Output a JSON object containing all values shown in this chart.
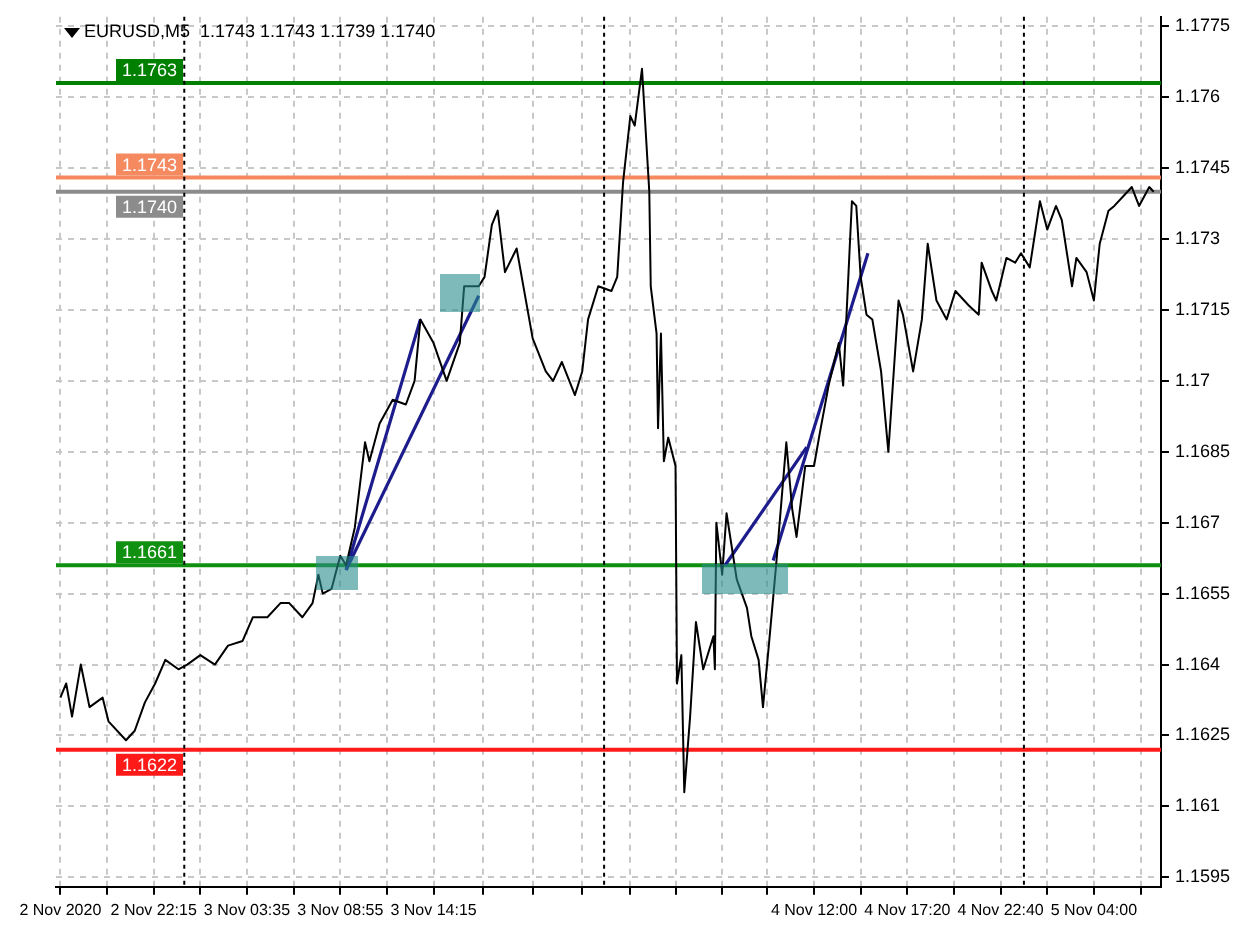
{
  "chart_data": {
    "type": "line",
    "title": "EURUSD,M5  1.1743 1.1743 1.1739 1.1740",
    "xlim": [
      "2020-11-02T16:40",
      "2020-11-05T07:50"
    ],
    "ylim": [
      1.1593,
      1.1777
    ],
    "xticks": [
      {
        "value": "2020-11-02T16:55",
        "label": "2 Nov 2020"
      },
      {
        "value": "2020-11-02T19:35",
        "label": null
      },
      {
        "value": "2020-11-02T22:15",
        "label": "2 Nov 22:15"
      },
      {
        "value": "2020-11-03T00:55",
        "label": null
      },
      {
        "value": "2020-11-03T03:35",
        "label": "3 Nov 03:35"
      },
      {
        "value": "2020-11-03T06:15",
        "label": null
      },
      {
        "value": "2020-11-03T08:55",
        "label": "3 Nov 08:55"
      },
      {
        "value": "2020-11-03T11:35",
        "label": null
      },
      {
        "value": "2020-11-03T14:15",
        "label": "3 Nov 14:15"
      },
      {
        "value": "2020-11-03T17:05",
        "label": null
      },
      {
        "value": "2020-11-03T19:55",
        "label": null
      },
      {
        "value": "2020-11-03T22:45",
        "label": null
      },
      {
        "value": "2020-11-04T01:30",
        "label": null
      },
      {
        "value": "2020-11-04T04:05",
        "label": null
      },
      {
        "value": "2020-11-04T06:45",
        "label": null
      },
      {
        "value": "2020-11-04T09:20",
        "label": null
      },
      {
        "value": "2020-11-04T12:00",
        "label": "4 Nov 12:00"
      },
      {
        "value": "2020-11-04T14:40",
        "label": null
      },
      {
        "value": "2020-11-04T17:20",
        "label": "4 Nov 17:20"
      },
      {
        "value": "2020-11-04T20:00",
        "label": null
      },
      {
        "value": "2020-11-04T22:40",
        "label": "4 Nov 22:40"
      },
      {
        "value": "2020-11-05T01:20",
        "label": null
      },
      {
        "value": "2020-11-05T04:00",
        "label": "5 Nov 04:00"
      },
      {
        "value": "2020-11-05T06:40",
        "label": null
      }
    ],
    "yticks": [
      1.1595,
      1.161,
      1.1625,
      1.164,
      1.1655,
      1.167,
      1.1685,
      1.17,
      1.1715,
      1.173,
      1.1745,
      1.176,
      1.1775
    ],
    "grid": true,
    "legend": false,
    "marker": "none",
    "line_style": "solid",
    "series": [
      {
        "type": "line",
        "color": "#000000",
        "x": [
          "2020-11-02T16:55",
          "2020-11-02T17:15",
          "2020-11-02T17:35",
          "2020-11-02T18:05",
          "2020-11-02T18:35",
          "2020-11-02T19:20",
          "2020-11-02T19:40",
          "2020-11-02T20:40",
          "2020-11-02T21:10",
          "2020-11-02T21:45",
          "2020-11-02T22:20",
          "2020-11-02T22:55",
          "2020-11-02T23:40",
          "2020-11-03T00:10",
          "2020-11-03T00:55",
          "2020-11-03T01:45",
          "2020-11-03T02:30",
          "2020-11-03T03:20",
          "2020-11-03T03:55",
          "2020-11-03T04:45",
          "2020-11-03T05:30",
          "2020-11-03T06:00",
          "2020-11-03T06:45",
          "2020-11-03T07:20",
          "2020-11-03T07:40",
          "2020-11-03T07:55",
          "2020-11-03T08:25",
          "2020-11-03T08:55",
          "2020-11-03T09:15",
          "2020-11-03T09:45",
          "2020-11-03T10:20",
          "2020-11-03T10:35",
          "2020-11-03T11:10",
          "2020-11-03T11:55",
          "2020-11-03T12:40",
          "2020-11-03T13:10",
          "2020-11-03T13:30",
          "2020-11-03T14:15",
          "2020-11-03T15:00",
          "2020-11-03T15:45",
          "2020-11-03T16:00",
          "2020-11-03T16:50",
          "2020-11-03T17:10",
          "2020-11-03T17:35",
          "2020-11-03T17:55",
          "2020-11-03T18:20",
          "2020-11-03T19:00",
          "2020-11-03T19:55",
          "2020-11-03T20:40",
          "2020-11-03T21:05",
          "2020-11-03T21:35",
          "2020-11-03T22:20",
          "2020-11-03T22:45",
          "2020-11-03T23:05",
          "2020-11-03T23:40",
          "2020-11-04T00:25",
          "2020-11-04T00:45",
          "2020-11-04T01:05",
          "2020-11-04T01:30",
          "2020-11-04T01:45",
          "2020-11-04T02:10",
          "2020-11-04T02:35",
          "2020-11-04T02:40",
          "2020-11-04T03:00",
          "2020-11-04T03:05",
          "2020-11-04T03:15",
          "2020-11-04T03:25",
          "2020-11-04T03:40",
          "2020-11-04T04:05",
          "2020-11-04T04:10",
          "2020-11-04T04:25",
          "2020-11-04T04:35",
          "2020-11-04T04:55",
          "2020-11-04T05:15",
          "2020-11-04T05:40",
          "2020-11-04T06:15",
          "2020-11-04T06:20",
          "2020-11-04T06:25",
          "2020-11-04T06:45",
          "2020-11-04T07:00",
          "2020-11-04T07:35",
          "2020-11-04T08:10",
          "2020-11-04T08:25",
          "2020-11-04T08:50",
          "2020-11-04T09:05",
          "2020-11-04T09:25",
          "2020-11-04T09:50",
          "2020-11-04T10:25",
          "2020-11-04T10:45",
          "2020-11-04T11:00",
          "2020-11-04T11:30",
          "2020-11-04T12:00",
          "2020-11-04T12:20",
          "2020-11-04T12:50",
          "2020-11-04T13:25",
          "2020-11-04T13:40",
          "2020-11-04T14:10",
          "2020-11-04T14:25",
          "2020-11-04T14:40",
          "2020-11-04T15:00",
          "2020-11-04T15:20",
          "2020-11-04T15:50",
          "2020-11-04T16:15",
          "2020-11-04T16:50",
          "2020-11-04T17:05",
          "2020-11-04T17:40",
          "2020-11-04T18:10",
          "2020-11-04T18:30",
          "2020-11-04T19:00",
          "2020-11-04T19:35",
          "2020-11-04T20:05",
          "2020-11-04T20:50",
          "2020-11-04T21:25",
          "2020-11-04T21:35",
          "2020-11-04T22:10",
          "2020-11-04T22:25",
          "2020-11-04T23:00",
          "2020-11-04T23:30",
          "2020-11-04T23:50",
          "2020-11-05T00:20",
          "2020-11-05T00:55",
          "2020-11-05T01:20",
          "2020-11-05T01:50",
          "2020-11-05T02:10",
          "2020-11-05T02:45",
          "2020-11-05T03:00",
          "2020-11-05T03:35",
          "2020-11-05T04:00",
          "2020-11-05T04:20",
          "2020-11-05T04:50",
          "2020-11-05T05:10",
          "2020-11-05T05:40",
          "2020-11-05T06:10",
          "2020-11-05T06:35",
          "2020-11-05T07:10",
          "2020-11-05T07:25"
        ],
        "values": [
          1.1633,
          1.1636,
          1.1629,
          1.164,
          1.1631,
          1.1633,
          1.1628,
          1.1624,
          1.1626,
          1.1632,
          1.1636,
          1.1641,
          1.1639,
          1.164,
          1.1642,
          1.164,
          1.1644,
          1.1645,
          1.165,
          1.165,
          1.1653,
          1.1653,
          1.165,
          1.1653,
          1.1659,
          1.1655,
          1.1656,
          1.1663,
          1.1661,
          1.1669,
          1.1687,
          1.1683,
          1.1691,
          1.1696,
          1.1695,
          1.17,
          1.1713,
          1.1708,
          1.17,
          1.1708,
          1.172,
          1.172,
          1.1722,
          1.1733,
          1.1736,
          1.1723,
          1.1728,
          1.1709,
          1.1702,
          1.17,
          1.1704,
          1.1697,
          1.1702,
          1.1713,
          1.172,
          1.1719,
          1.1722,
          1.1742,
          1.1756,
          1.1754,
          1.1766,
          1.174,
          1.172,
          1.171,
          1.169,
          1.171,
          1.1683,
          1.1688,
          1.1682,
          1.1636,
          1.1642,
          1.1613,
          1.1629,
          1.1649,
          1.1639,
          1.1646,
          1.1639,
          1.167,
          1.1659,
          1.1672,
          1.1658,
          1.1652,
          1.1646,
          1.1641,
          1.1631,
          1.1644,
          1.1661,
          1.1687,
          1.1673,
          1.1667,
          1.1682,
          1.1682,
          1.1689,
          1.1699,
          1.1708,
          1.1699,
          1.1738,
          1.1737,
          1.1722,
          1.1714,
          1.1713,
          1.1702,
          1.1685,
          1.1717,
          1.1714,
          1.1702,
          1.1713,
          1.1729,
          1.1717,
          1.1713,
          1.1719,
          1.1716,
          1.1714,
          1.1725,
          1.1719,
          1.1717,
          1.1726,
          1.1725,
          1.1727,
          1.1724,
          1.1738,
          1.1732,
          1.1737,
          1.1734,
          1.172,
          1.1726,
          1.1723,
          1.1717,
          1.1729,
          1.1736,
          1.1737,
          1.1739,
          1.1741,
          1.1737,
          1.1741,
          1.174
        ]
      },
      {
        "type": "line",
        "color": "#1c1c8c",
        "x": [
          "2020-11-03T09:15",
          "2020-11-03T13:30"
        ],
        "values": [
          1.166,
          1.1713
        ]
      },
      {
        "type": "line",
        "color": "#1c1c8c",
        "x": [
          "2020-11-03T09:15",
          "2020-11-03T16:50"
        ],
        "values": [
          1.166,
          1.1718
        ]
      },
      {
        "type": "line",
        "color": "#1c1c8c",
        "x": [
          "2020-11-04T06:55",
          "2020-11-04T11:35"
        ],
        "values": [
          1.1661,
          1.1686
        ]
      },
      {
        "type": "line",
        "color": "#1c1c8c",
        "x": [
          "2020-11-04T09:40",
          "2020-11-04T15:05"
        ],
        "values": [
          1.1662,
          1.1727
        ]
      }
    ],
    "ref_lines": [
      {
        "axis": "y",
        "value": 1.1763,
        "label": "1.1763",
        "color": "#008000",
        "line_style": "solid"
      },
      {
        "axis": "y",
        "value": 1.1743,
        "label": "1.1743",
        "color": "#f58a60",
        "line_style": "solid"
      },
      {
        "axis": "y",
        "value": 1.174,
        "label": "1.1740",
        "color": "#8c8c8c",
        "line_style": "solid"
      },
      {
        "axis": "y",
        "value": 1.1661,
        "label": "1.1661",
        "color": "#109010",
        "line_style": "solid"
      },
      {
        "axis": "y",
        "value": 1.1622,
        "label": "1.1622",
        "color": "#ff1a1a",
        "line_style": "solid"
      },
      {
        "axis": "x",
        "value": "2020-11-03T00:00",
        "color": "#000000",
        "line_style": "dotted"
      },
      {
        "axis": "x",
        "value": "2020-11-04T00:00",
        "color": "#000000",
        "line_style": "dotted"
      },
      {
        "axis": "x",
        "value": "2020-11-05T00:00",
        "color": "#000000",
        "line_style": "dotted"
      }
    ]
  }
}
